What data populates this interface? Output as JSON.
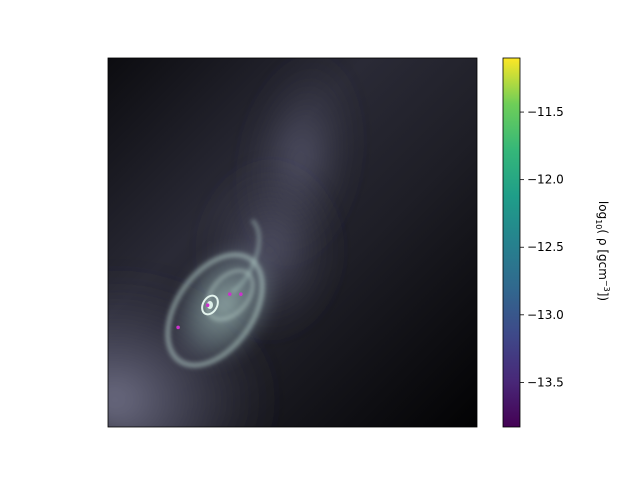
{
  "chart_data": {
    "type": "heatmap",
    "title": "",
    "xlabel": "",
    "ylabel": "",
    "colormap": "viridis",
    "image_colormap": "bone",
    "colorbar": {
      "label_prefix": "log",
      "label_sub": "10",
      "label_mid": "( ρ [gcm",
      "label_sup": "−3",
      "label_suffix": "])",
      "vmin": -13.83,
      "vmax": -11.1,
      "ticks": [
        -11.5,
        -12.0,
        -12.5,
        -13.0,
        -13.5
      ],
      "tick_labels": [
        "−11.5",
        "−12.0",
        "−12.5",
        "−13.0",
        "−13.5"
      ]
    },
    "sink_particles": [
      {
        "x": 0.27,
        "y": 0.33
      },
      {
        "x": 0.33,
        "y": 0.36
      },
      {
        "x": 0.19,
        "y": 0.27
      },
      {
        "x": 0.36,
        "y": 0.36
      }
    ],
    "marker_color": "#cc33cc"
  }
}
